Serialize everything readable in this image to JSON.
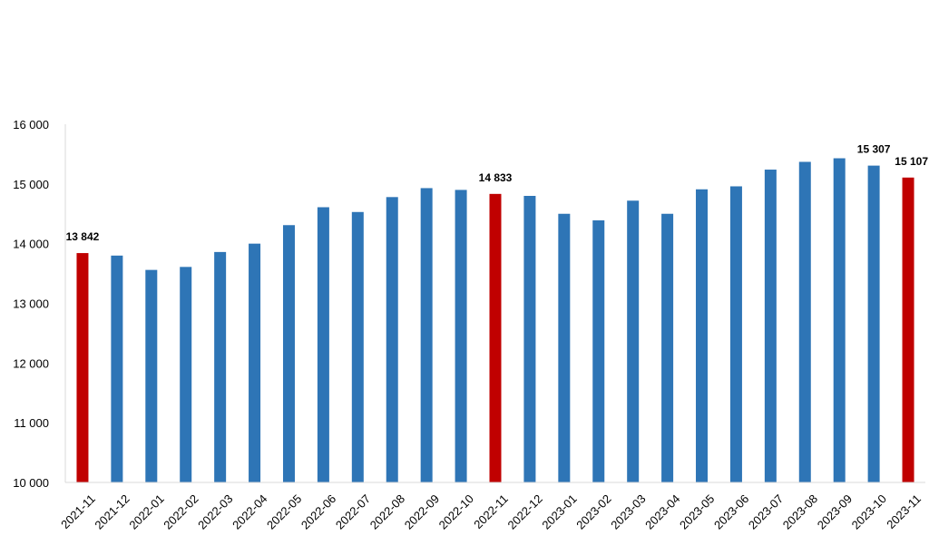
{
  "chart_data": {
    "type": "bar",
    "title": "",
    "xlabel": "",
    "ylabel": "",
    "ylim": [
      10000,
      16000
    ],
    "yticks": [
      10000,
      11000,
      12000,
      13000,
      14000,
      15000,
      16000
    ],
    "ytick_labels": [
      "10 000",
      "11 000",
      "12 000",
      "13 000",
      "14 000",
      "15 000",
      "16 000"
    ],
    "categories": [
      "2021-11",
      "2021-12",
      "2022-01",
      "2022-02",
      "2022-03",
      "2022-04",
      "2022-05",
      "2022-06",
      "2022-07",
      "2022-08",
      "2022-09",
      "2022-10",
      "2022-11",
      "2022-12",
      "2023-01",
      "2023-02",
      "2023-03",
      "2023-04",
      "2023-05",
      "2023-06",
      "2023-07",
      "2023-08",
      "2023-09",
      "2023-10",
      "2023-11"
    ],
    "values": [
      13842,
      13800,
      13560,
      13610,
      13860,
      14000,
      14310,
      14610,
      14530,
      14780,
      14930,
      14900,
      14833,
      14800,
      14500,
      14390,
      14720,
      14500,
      14910,
      14960,
      15240,
      15370,
      15430,
      15307,
      15107
    ],
    "highlighted": [
      "2021-11",
      "2022-11",
      "2023-11"
    ],
    "data_labels": [
      {
        "category": "2021-11",
        "text": "13 842"
      },
      {
        "category": "2022-11",
        "text": "14 833"
      },
      {
        "category": "2023-10",
        "text": "15 307"
      },
      {
        "category": "2023-11",
        "text": "15 107"
      }
    ],
    "grid": false,
    "legend": "none",
    "colors": {
      "bar": "#2e75b6",
      "highlight": "#c00000",
      "axis": "#d9d9d9",
      "text": "#000000"
    }
  }
}
